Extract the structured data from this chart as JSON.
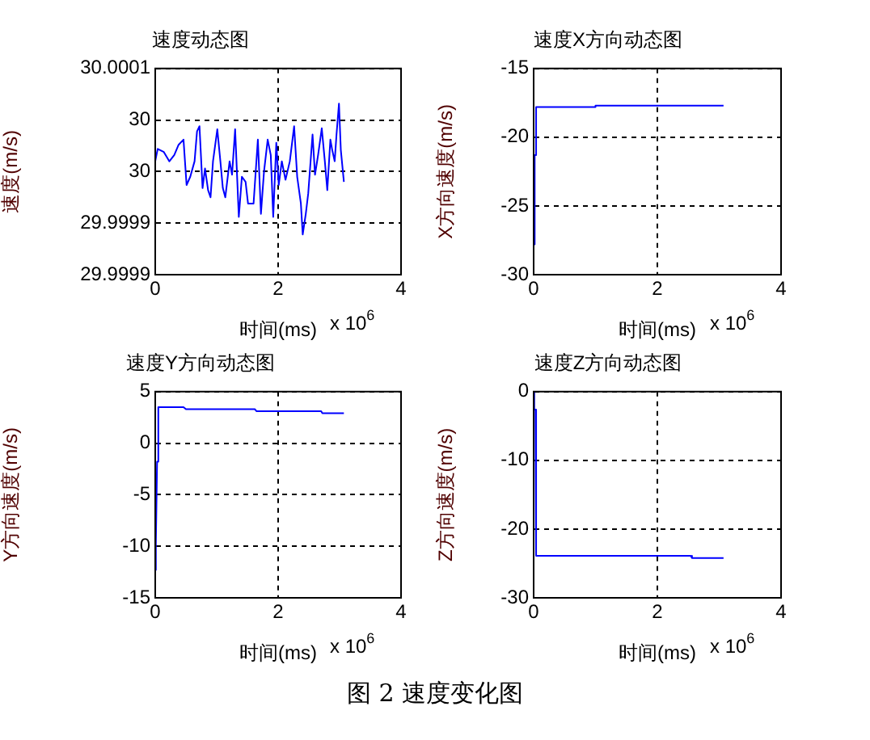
{
  "chart_data": [
    {
      "type": "line",
      "title": "速度动态图",
      "xlabel": "时间(ms)",
      "ylabel": "速度(m/s)",
      "annotations": [
        "x 10$^{6}$",
        "图 2  速度变化图"
      ],
      "xlim": [
        0,
        4
      ],
      "xticks": [
        0,
        2,
        4
      ],
      "ylim": [
        29.9999,
        30.0001
      ],
      "yticks": [
        {
          "value": 29.9999,
          "label": "29.9999"
        },
        {
          "value": 29.99995,
          "label": "29.9999"
        },
        {
          "value": 30,
          "label": "30"
        },
        {
          "value": 30.00005,
          "label": "30"
        },
        {
          "value": 30.0001,
          "label": "30.0001"
        }
      ],
      "grid": true,
      "series": [
        {
          "color": "#0000ff",
          "x": [
            0,
            0.04,
            0.14,
            0.23,
            0.31,
            0.38,
            0.46,
            0.51,
            0.57,
            0.64,
            0.68,
            0.72,
            0.77,
            0.81,
            0.86,
            0.9,
            0.94,
            1.01,
            1.06,
            1.1,
            1.14,
            1.21,
            1.25,
            1.3,
            1.36,
            1.41,
            1.47,
            1.51,
            1.6,
            1.67,
            1.72,
            1.77,
            1.83,
            1.88,
            1.92,
            1.97,
            2.01,
            2.06,
            2.12,
            2.19,
            2.26,
            2.31,
            2.37,
            2.4,
            2.45,
            2.49,
            2.56,
            2.6,
            2.65,
            2.71,
            2.76,
            2.8,
            2.85,
            2.88,
            2.92,
            2.95,
            2.99,
            3.02,
            3.07
          ],
          "values": [
            30.00001,
            30.000022,
            30.000019,
            30.00001,
            30.000016,
            30.000026,
            30.000031,
            29.999987,
            29.999995,
            30.00001,
            30.000039,
            30.000044,
            29.999984,
            30.000003,
            29.999982,
            29.999975,
            30.00001,
            30.000041,
            30.00001,
            29.999984,
            29.999975,
            30.00001,
            29.999997,
            30.000041,
            29.999956,
            29.999995,
            29.99999,
            29.999969,
            29.999969,
            30.000031,
            29.999959,
            30,
            30.000031,
            30.000016,
            29.999956,
            30.000028,
            29.999987,
            30.00001,
            29.999992,
            30.00001,
            30.000044,
            29.999995,
            29.999969,
            29.999939,
            29.999959,
            29.999979,
            30.000036,
            29.999997,
            30.000016,
            30.000042,
            30.00001,
            29.999982,
            30.000031,
            30.000021,
            30.00001,
            30.000036,
            30.000066,
            30.000021,
            29.99999
          ]
        }
      ]
    },
    {
      "type": "line",
      "title": "速度X方向动态图",
      "xlabel": "时间(ms)",
      "ylabel": "X方向速度(m/s)",
      "annotations": [
        "x 10$^{6}$"
      ],
      "xlim": [
        0,
        4
      ],
      "xticks": [
        0,
        2,
        4
      ],
      "ylim": [
        -30,
        -15
      ],
      "yticks": [
        -30,
        -25,
        -20,
        -15
      ],
      "grid": true,
      "series": [
        {
          "color": "#0000ff",
          "x": [
            0.01,
            0.01,
            0.02,
            0.02,
            0.04,
            0.04,
            1.0,
            1.0,
            3.07
          ],
          "values": [
            -27.8,
            -26.6,
            -26.6,
            -21.3,
            -21.3,
            -17.8,
            -17.8,
            -17.7,
            -17.7
          ]
        }
      ]
    },
    {
      "type": "line",
      "title": "速度Y方向动态图",
      "xlabel": "时间(ms)",
      "ylabel": "Y方向速度(m/s)",
      "annotations": [
        "x 10$^{6}$"
      ],
      "xlim": [
        0,
        4
      ],
      "xticks": [
        0,
        2,
        4
      ],
      "ylim": [
        -15,
        5
      ],
      "yticks": [
        -15,
        -10,
        -5,
        0,
        5
      ],
      "grid": true,
      "series": [
        {
          "color": "#0000ff",
          "x": [
            0,
            0.01,
            0.03,
            0.05,
            0.46,
            0.5,
            1.62,
            1.65,
            2.7,
            2.72,
            3.07
          ],
          "values": [
            -12.3,
            -9.8,
            -1.8,
            3.5,
            3.5,
            3.3,
            3.3,
            3.1,
            3.1,
            2.9,
            2.9
          ]
        }
      ]
    },
    {
      "type": "line",
      "title": "速度Z方向动态图",
      "xlabel": "时间(ms)",
      "ylabel": "Z方向速度(m/s)",
      "annotations": [
        "x 10$^{6}$"
      ],
      "xlim": [
        0,
        4
      ],
      "xticks": [
        0,
        2,
        4
      ],
      "ylim": [
        -30,
        0
      ],
      "yticks": [
        -30,
        -20,
        -10,
        0
      ],
      "grid": true,
      "series": [
        {
          "color": "#0000ff",
          "x": [
            0,
            0.01,
            0.03,
            0.03,
            0.04,
            0.05,
            2.54,
            2.56,
            3.07
          ],
          "values": [
            0,
            -2.6,
            -2.6,
            -15.1,
            -15.1,
            -23.9,
            -23.9,
            -24.2,
            -24.2
          ]
        }
      ]
    }
  ]
}
